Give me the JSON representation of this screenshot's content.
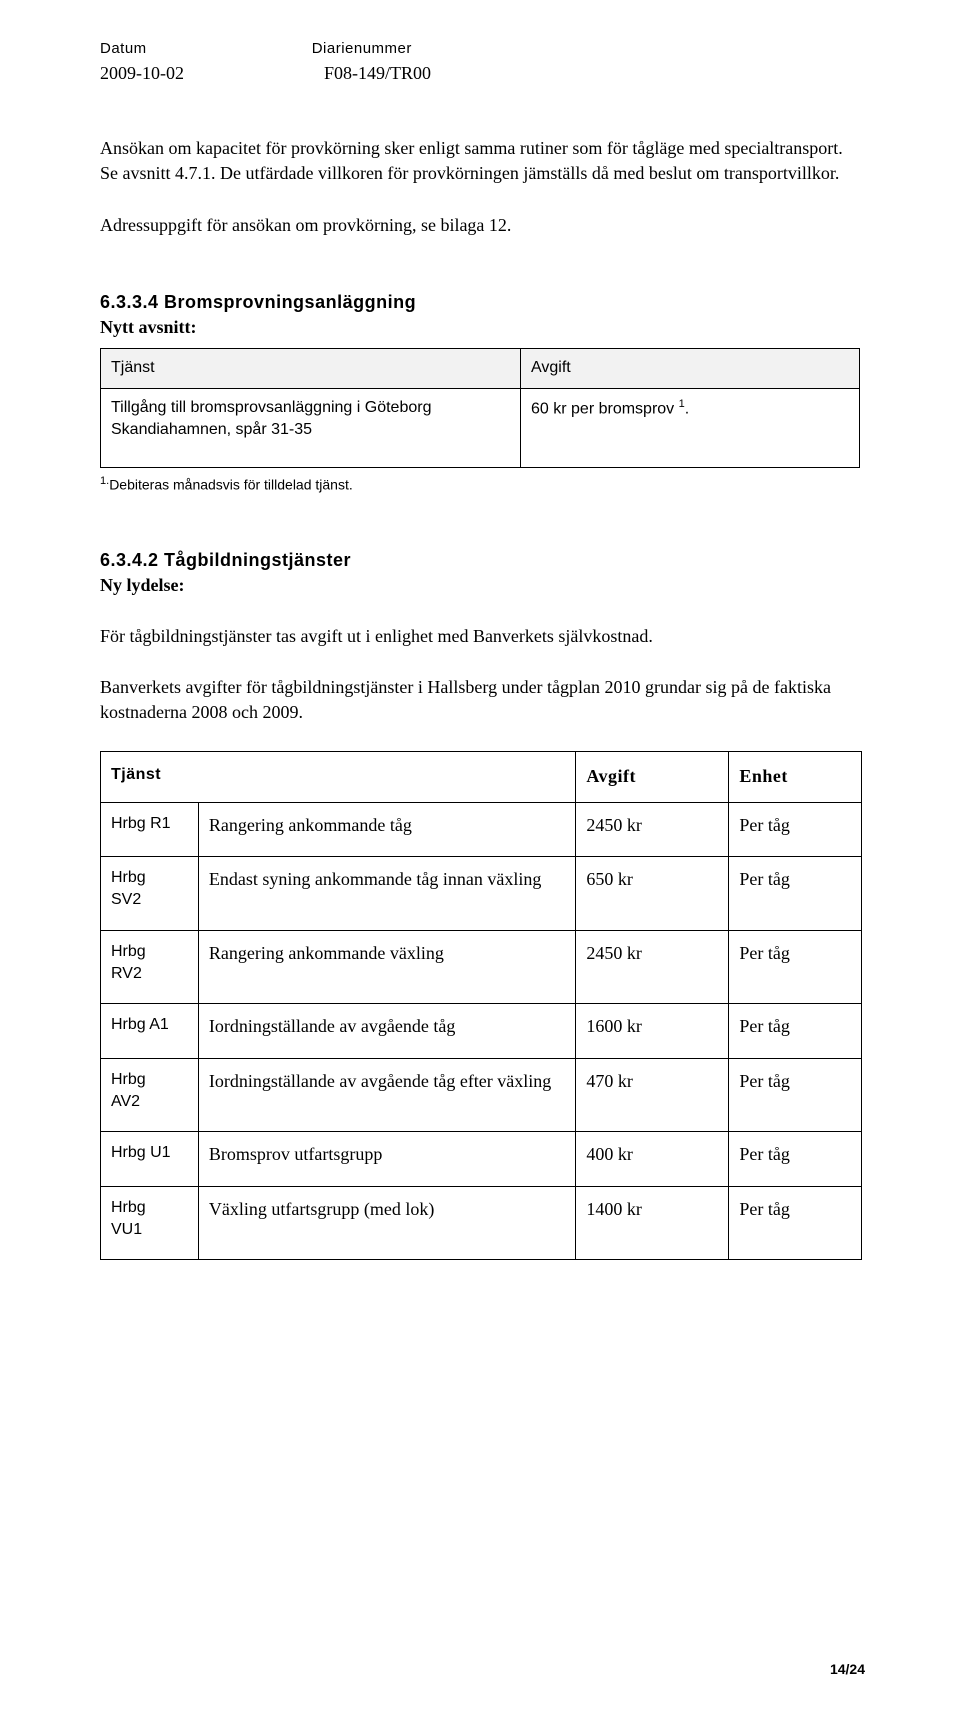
{
  "header": {
    "date_label": "Datum",
    "diarie_label": "Diarienummer",
    "date_value": "2009-10-02",
    "diarie_value": "F08-149/TR00"
  },
  "para1": "Ansökan om kapacitet för provkörning sker enligt samma rutiner som för tågläge med specialtransport. Se avsnitt 4.7.1. De utfärdade villkoren för provkörningen jämställs då med beslut om transportvillkor.",
  "para2": "Adressuppgift för ansökan om provkörning, se bilaga 12.",
  "sec_6334_heading": "6.3.3.4 Bromsprovningsanläggning",
  "nytt_avsnitt": "Nytt avsnitt:",
  "t1": {
    "h1": "Tjänst",
    "h2": "Avgift",
    "c1": "Tillgång till bromsprovsanläggning i Göteborg Skandiahamnen, spår 31-35",
    "c2": "60 kr per bromsprov ",
    "c2_sup": "1",
    "c2_dot": "."
  },
  "footnote1_sup": "1.",
  "footnote1": "Debiteras månadsvis för tilldelad tjänst.",
  "sec_6342_heading": "6.3.4.2 Tågbildningstjänster",
  "ny_lydelse": "Ny lydelse:",
  "para3": "För tågbildningstjänster tas avgift ut i enlighet med Banverkets självkostnad.",
  "para4": "Banverkets avgifter för tågbildningstjänster i Hallsberg under tågplan 2010 grundar sig på de faktiska kostnaderna 2008 och 2009.",
  "t2": {
    "h1": "Tjänst",
    "h2": "Avgift",
    "h3": "Enhet",
    "rows": [
      {
        "c0": "Hrbg R1",
        "c1": "Rangering ankommande tåg",
        "c2": "2450 kr",
        "c3": "Per tåg",
        "align": "left"
      },
      {
        "c0": "Hrbg SV2",
        "c1": "Endast syning ankommande tåg innan växling",
        "c2": "650 kr",
        "c3": "Per tåg",
        "align": "right"
      },
      {
        "c0": "Hrbg RV2",
        "c1": "Rangering ankommande växling",
        "c2": "2450 kr",
        "c3": "Per tåg",
        "align": "left"
      },
      {
        "c0": "Hrbg A1",
        "c1": "Iordningställande av avgående tåg",
        "c2": "1600 kr",
        "c3": "Per tåg",
        "align": "left"
      },
      {
        "c0": "Hrbg AV2",
        "c1": "Iordningställande av avgående tåg efter växling",
        "c2": "470 kr",
        "c3": "Per tåg",
        "align": "right"
      },
      {
        "c0": "Hrbg U1",
        "c1": "Bromsprov utfartsgrupp",
        "c2": "400 kr",
        "c3": "Per tåg",
        "align": "right"
      },
      {
        "c0": "Hrbg VU1",
        "c1": "Växling utfartsgrupp (med lok)",
        "c2": "1400 kr",
        "c3": "Per tåg",
        "align": "right"
      }
    ]
  },
  "page_number": "14/24"
}
